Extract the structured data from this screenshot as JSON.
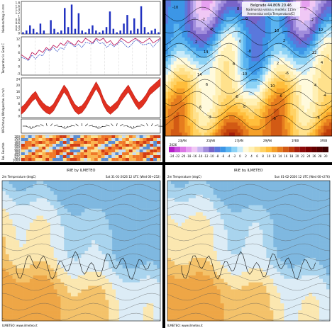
{
  "meteogram": {
    "panels": [
      {
        "id": "precip",
        "ylabel": "Niederschlag in mm",
        "ticks": [
          "1.8",
          "1.6",
          "1.4",
          "1.2",
          "1",
          "0.8",
          "0.6",
          "0.4",
          "0.2",
          "0"
        ]
      },
      {
        "id": "temp",
        "ylabel": "Temperatur in Grad C",
        "ticks": [
          "12",
          "9",
          "6",
          "3",
          "0",
          "-3"
        ]
      },
      {
        "id": "wind",
        "ylabel": "Windgeschw. in m/s",
        "ticks": [
          "24",
          "20",
          "16",
          "12",
          "8",
          "4",
          "0"
        ]
      },
      {
        "id": "dir",
        "ylabel": "W-Richtung",
        "ticks": []
      },
      {
        "id": "cloud",
        "ylabel": "Rel. Feuchte",
        "ticks": [
          "200",
          "250",
          "300",
          "400",
          "500",
          "600",
          "700",
          "850",
          "925",
          "1000"
        ]
      }
    ],
    "precip_values": [
      0.1,
      0.2,
      0.5,
      0.3,
      0.1,
      0.6,
      0.2,
      0,
      0.8,
      0.3,
      0.1,
      0.2,
      1.5,
      0.4,
      1.7,
      0.3,
      1.2,
      0.2,
      0.1,
      0.3,
      0.5,
      0.2,
      0.1,
      0.2,
      0.4,
      1.3,
      0.3,
      0.1,
      0.2,
      0.6,
      1.1,
      0.2,
      0.9,
      0.3,
      1.6,
      0.4,
      0.1,
      0.2,
      0.3,
      0.1
    ],
    "temp_values": [
      5,
      4,
      3,
      6,
      5,
      7,
      6,
      8,
      7,
      9,
      8,
      10,
      9,
      11,
      10,
      9,
      11,
      10,
      12,
      11,
      10,
      12,
      11,
      12,
      10,
      11,
      9,
      10,
      12,
      11,
      10,
      11,
      12,
      11,
      10,
      11,
      12,
      10,
      11,
      12
    ],
    "wind_values": [
      4,
      6,
      9,
      12,
      14,
      10,
      7,
      5,
      4,
      6,
      10,
      14,
      18,
      15,
      10,
      6,
      4,
      5,
      8,
      12,
      16,
      20,
      16,
      10,
      6,
      4,
      6,
      8,
      12,
      15,
      18,
      14,
      10,
      7,
      9,
      12,
      16,
      18,
      20,
      22
    ]
  },
  "timesection": {
    "title": "Belgrade 44.80N 20.46",
    "subtitle": "Nadmorska visina u modelu: 115m",
    "subtitle2": "Vremenska serija Temperatura[C]",
    "xlabels": [
      "23JAN",
      "25JAN",
      "27JAN",
      "29JAN",
      "1FEB",
      "3FEB"
    ],
    "year": "2026",
    "contour_labels": [
      "-10",
      "-8",
      "-8",
      "-6",
      "-4",
      "-2",
      "0",
      "2",
      "4",
      "6",
      "8",
      "10",
      "12",
      "14",
      "-10",
      "-6",
      "-4",
      "-2",
      "0",
      "2",
      "4",
      "6",
      "8",
      "10",
      "12",
      "14",
      "-8",
      "-6",
      "-2",
      "2",
      "6",
      "10"
    ],
    "legend_values": [
      "-24",
      "-22",
      "-20",
      "-18",
      "-16",
      "-14",
      "-12",
      "-10",
      "-8",
      "-6",
      "-4",
      "-2",
      "0",
      "2",
      "4",
      "6",
      "8",
      "10",
      "12",
      "14",
      "16",
      "18",
      "20",
      "22",
      "24",
      "26",
      "28",
      "30"
    ],
    "legend_colors": [
      "#b41ec8",
      "#c850dc",
      "#dc78e6",
      "#e6a0f0",
      "#f0c8f5",
      "#c8b4f0",
      "#a08cdc",
      "#7864c8",
      "#5a78dc",
      "#3c96e6",
      "#5ab4f0",
      "#8cd2f5",
      "#c8ebfa",
      "#fffadc",
      "#fff0b4",
      "#ffe18c",
      "#ffd264",
      "#ffbe3c",
      "#f5a028",
      "#e67d1e",
      "#d25a14",
      "#be3c0a",
      "#a51e0a",
      "#8c0a0a",
      "#780000",
      "#640000",
      "#500000",
      "#3c0000"
    ]
  },
  "map1": {
    "head_left": "IRIE by ILMETEO",
    "head_sub": "2m Temperature (degC)",
    "head_right": "Sat 31-01-2026 12 UTC (Wed 00+252)",
    "footer": "ILMETEO: www.ilmeteo.it"
  },
  "map2": {
    "head_left": "IRIE by ILMETEO",
    "head_sub": "2m Temperature (degC)",
    "head_right": "Sun 01-02-2026 12 UTC (Wed 00+276)",
    "footer": "ILMETEO: www.ilmeteo.it"
  },
  "colors": {
    "precip": "#2030c0",
    "temp_line": "#c02060",
    "wind": "#e03020",
    "cold": "#a9d4ee",
    "warm": "#f4c26a"
  }
}
